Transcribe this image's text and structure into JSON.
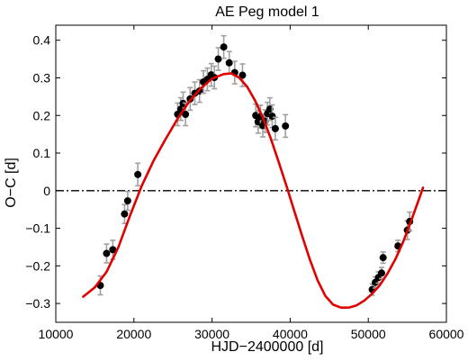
{
  "chart_data": {
    "type": "scatter",
    "title": "AE Peg model 1",
    "xlabel": "HJD−2400000 [d]",
    "ylabel": "O−C [d]",
    "xlim": [
      10000,
      60000
    ],
    "ylim": [
      -0.35,
      0.44
    ],
    "xticks": [
      10000,
      20000,
      30000,
      40000,
      50000,
      60000
    ],
    "xtick_labels": [
      "10000",
      "20000",
      "30000",
      "40000",
      "50000",
      "60000"
    ],
    "yticks": [
      -0.3,
      -0.2,
      -0.1,
      0,
      0.1,
      0.2,
      0.3,
      0.4
    ],
    "ytick_labels": [
      "−0.3",
      "−0.2",
      "−0.1",
      "0",
      "0.1",
      "0.2",
      "0.3",
      "0.4"
    ],
    "grid": false,
    "zero_line": {
      "y": 0,
      "style": "dash-dot",
      "color": "#000000"
    },
    "colors": {
      "points": "#000000",
      "errorbars": "#a0a0a0",
      "model": "#e00000"
    },
    "observations": [
      {
        "x": 15700,
        "y": -0.252,
        "err": 0.025
      },
      {
        "x": 16500,
        "y": -0.167,
        "err": 0.025
      },
      {
        "x": 17300,
        "y": -0.157,
        "err": 0.025
      },
      {
        "x": 18800,
        "y": -0.062,
        "err": 0.025
      },
      {
        "x": 19200,
        "y": -0.027,
        "err": 0.025
      },
      {
        "x": 20500,
        "y": 0.043,
        "err": 0.03
      },
      {
        "x": 25600,
        "y": 0.203,
        "err": 0.03
      },
      {
        "x": 26000,
        "y": 0.217,
        "err": 0.03
      },
      {
        "x": 26300,
        "y": 0.232,
        "err": 0.03
      },
      {
        "x": 26600,
        "y": 0.203,
        "err": 0.03
      },
      {
        "x": 27200,
        "y": 0.244,
        "err": 0.03
      },
      {
        "x": 27800,
        "y": 0.259,
        "err": 0.03
      },
      {
        "x": 28400,
        "y": 0.265,
        "err": 0.03
      },
      {
        "x": 28900,
        "y": 0.289,
        "err": 0.03
      },
      {
        "x": 29400,
        "y": 0.296,
        "err": 0.03
      },
      {
        "x": 29900,
        "y": 0.308,
        "err": 0.03
      },
      {
        "x": 30300,
        "y": 0.301,
        "err": 0.03
      },
      {
        "x": 30800,
        "y": 0.35,
        "err": 0.03
      },
      {
        "x": 31500,
        "y": 0.382,
        "err": 0.03
      },
      {
        "x": 32200,
        "y": 0.34,
        "err": 0.03
      },
      {
        "x": 32900,
        "y": 0.314,
        "err": 0.03
      },
      {
        "x": 33900,
        "y": 0.307,
        "err": 0.03
      },
      {
        "x": 35600,
        "y": 0.2,
        "err": 0.03
      },
      {
        "x": 35900,
        "y": 0.183,
        "err": 0.03
      },
      {
        "x": 36200,
        "y": 0.197,
        "err": 0.03
      },
      {
        "x": 36500,
        "y": 0.173,
        "err": 0.03
      },
      {
        "x": 36800,
        "y": 0.185,
        "err": 0.03
      },
      {
        "x": 37100,
        "y": 0.205,
        "err": 0.03
      },
      {
        "x": 37400,
        "y": 0.217,
        "err": 0.03
      },
      {
        "x": 37700,
        "y": 0.198,
        "err": 0.03
      },
      {
        "x": 38100,
        "y": 0.165,
        "err": 0.03
      },
      {
        "x": 39400,
        "y": 0.172,
        "err": 0.03
      },
      {
        "x": 50500,
        "y": -0.263,
        "err": 0.015
      },
      {
        "x": 50900,
        "y": -0.244,
        "err": 0.015
      },
      {
        "x": 51300,
        "y": -0.231,
        "err": 0.015
      },
      {
        "x": 51700,
        "y": -0.219,
        "err": 0.015
      },
      {
        "x": 51900,
        "y": -0.178,
        "err": 0.015
      },
      {
        "x": 53800,
        "y": -0.147,
        "err": 0.015
      },
      {
        "x": 55000,
        "y": -0.105,
        "err": 0.025
      },
      {
        "x": 55300,
        "y": -0.082,
        "err": 0.025
      }
    ],
    "model": [
      {
        "x": 13500,
        "y": -0.282
      },
      {
        "x": 15000,
        "y": -0.257
      },
      {
        "x": 16500,
        "y": -0.216
      },
      {
        "x": 18000,
        "y": -0.151
      },
      {
        "x": 19500,
        "y": -0.066
      },
      {
        "x": 21000,
        "y": 0.013
      },
      {
        "x": 22500,
        "y": 0.079
      },
      {
        "x": 24000,
        "y": 0.135
      },
      {
        "x": 25500,
        "y": 0.188
      },
      {
        "x": 27000,
        "y": 0.235
      },
      {
        "x": 28500,
        "y": 0.271
      },
      {
        "x": 30000,
        "y": 0.298
      },
      {
        "x": 31500,
        "y": 0.31
      },
      {
        "x": 32500,
        "y": 0.312
      },
      {
        "x": 33500,
        "y": 0.3
      },
      {
        "x": 34500,
        "y": 0.276
      },
      {
        "x": 35500,
        "y": 0.24
      },
      {
        "x": 36500,
        "y": 0.195
      },
      {
        "x": 37500,
        "y": 0.14
      },
      {
        "x": 38500,
        "y": 0.078
      },
      {
        "x": 39500,
        "y": 0.014
      },
      {
        "x": 40500,
        "y": -0.052
      },
      {
        "x": 41500,
        "y": -0.118
      },
      {
        "x": 42500,
        "y": -0.182
      },
      {
        "x": 43500,
        "y": -0.238
      },
      {
        "x": 44500,
        "y": -0.28
      },
      {
        "x": 45500,
        "y": -0.303
      },
      {
        "x": 46500,
        "y": -0.311
      },
      {
        "x": 47500,
        "y": -0.311
      },
      {
        "x": 48500,
        "y": -0.305
      },
      {
        "x": 49500,
        "y": -0.292
      },
      {
        "x": 50500,
        "y": -0.274
      },
      {
        "x": 51500,
        "y": -0.251
      },
      {
        "x": 52500,
        "y": -0.219
      },
      {
        "x": 53500,
        "y": -0.181
      },
      {
        "x": 54500,
        "y": -0.134
      },
      {
        "x": 55500,
        "y": -0.08
      },
      {
        "x": 56500,
        "y": -0.022
      },
      {
        "x": 57000,
        "y": 0.008
      }
    ]
  }
}
